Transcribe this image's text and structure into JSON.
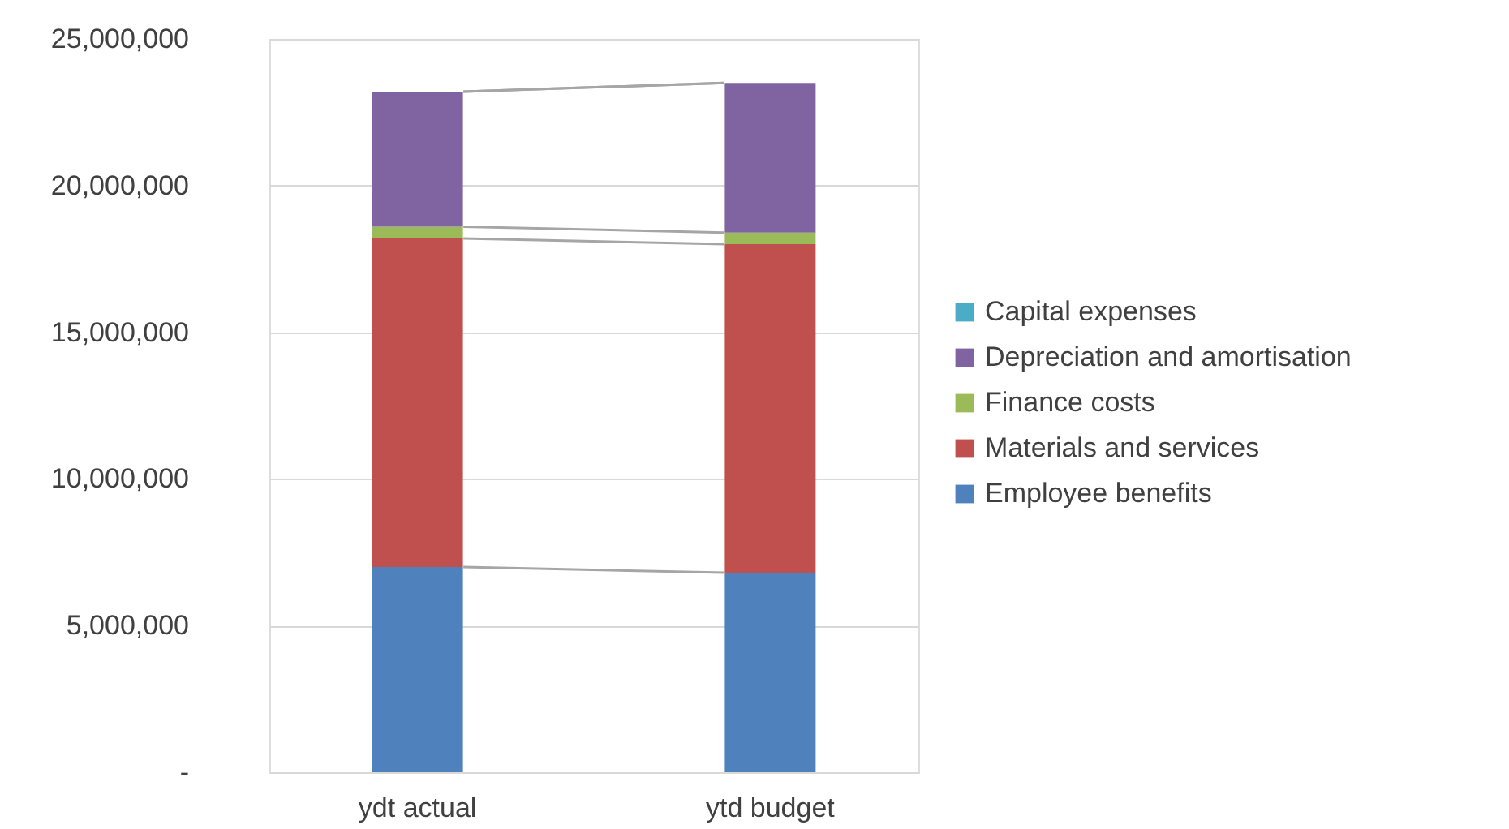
{
  "chart_data": {
    "type": "bar",
    "stacked": true,
    "categories": [
      "ydt actual",
      "ytd budget"
    ],
    "series": [
      {
        "name": "Employee benefits",
        "color": "#4f81bd",
        "values": [
          7000000,
          6800000
        ]
      },
      {
        "name": "Materials and services",
        "color": "#c0504d",
        "values": [
          11200000,
          11200000
        ]
      },
      {
        "name": "Finance costs",
        "color": "#9bbb59",
        "values": [
          400000,
          400000
        ]
      },
      {
        "name": "Depreciation and amortisation",
        "color": "#8064a2",
        "values": [
          4600000,
          5100000
        ]
      },
      {
        "name": "Capital expenses",
        "color": "#4bacc6",
        "values": [
          0,
          0
        ]
      }
    ],
    "ylim": [
      0,
      25000000
    ],
    "yticks": [
      {
        "value": 0,
        "label": "-"
      },
      {
        "value": 5000000,
        "label": "5,000,000"
      },
      {
        "value": 10000000,
        "label": "10,000,000"
      },
      {
        "value": 15000000,
        "label": "15,000,000"
      },
      {
        "value": 20000000,
        "label": "20,000,000"
      },
      {
        "value": 25000000,
        "label": "25,000,000"
      }
    ],
    "grid": "y",
    "legend": "right"
  }
}
